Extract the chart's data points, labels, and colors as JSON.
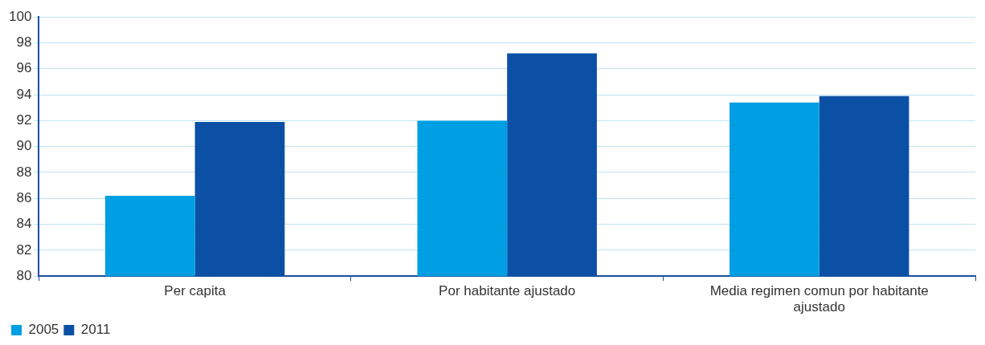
{
  "chart_data": {
    "type": "bar",
    "categories": [
      "Per capita",
      "Por habitante ajustado",
      "Media regimen comun por habitante ajustado"
    ],
    "series": [
      {
        "name": "2005",
        "color": "#009fe3",
        "values": [
          86.2,
          92.0,
          93.4
        ]
      },
      {
        "name": "2011",
        "color": "#0b50a5",
        "values": [
          91.9,
          97.2,
          93.9
        ]
      }
    ],
    "ylim": [
      80,
      100
    ],
    "yticks": [
      80,
      82,
      84,
      86,
      88,
      90,
      92,
      94,
      96,
      98,
      100
    ],
    "grid": "y",
    "legend": "bottom left"
  }
}
